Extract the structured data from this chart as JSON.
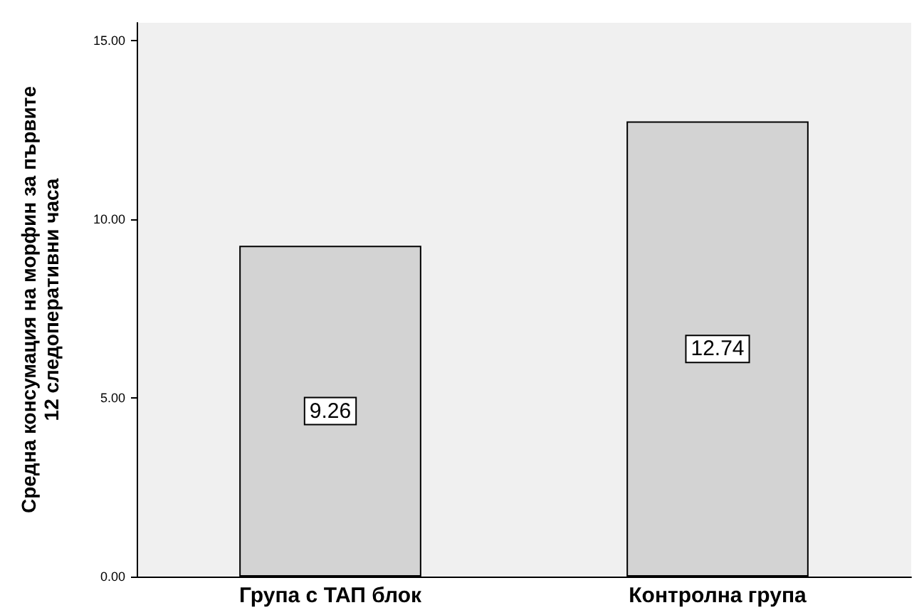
{
  "chart_data": {
    "type": "bar",
    "ylabel": "Средна консумация на морфин за първите 12 следоперативни часа",
    "categories": [
      "Група с ТАП блок",
      "Контролна група"
    ],
    "values": [
      9.26,
      12.74
    ],
    "color": "#d3d3d3",
    "ylim": [
      0,
      15.5
    ],
    "yticks": [
      {
        "value": 0,
        "label": "0.00"
      },
      {
        "value": 5,
        "label": "5.00"
      },
      {
        "value": 10,
        "label": "10.00"
      },
      {
        "value": 15,
        "label": "15.00"
      }
    ],
    "data_labels": true,
    "grid": false
  }
}
